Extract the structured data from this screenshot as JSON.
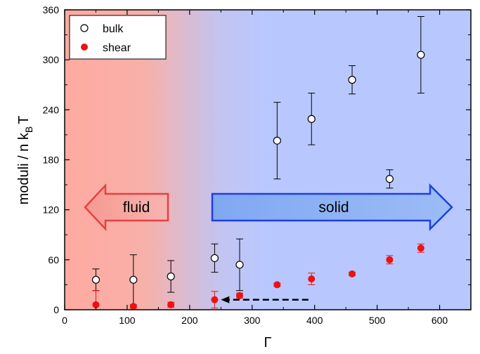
{
  "chart_data": {
    "type": "scatter",
    "xlabel": "Γ",
    "ylabel_main": "moduli / n k",
    "ylabel_sub": "B",
    "ylabel_tail": "T",
    "xlim": [
      0,
      650
    ],
    "ylim": [
      0,
      360
    ],
    "xticks": [
      0,
      100,
      200,
      300,
      400,
      500,
      600
    ],
    "yticks": [
      0,
      60,
      120,
      180,
      240,
      300,
      360
    ],
    "legend_position": "top-left",
    "regions": [
      {
        "label": "fluid",
        "color": "#ffaaa0"
      },
      {
        "label": "solid",
        "color": "#b8c8ff"
      }
    ],
    "colors": {
      "fluid_arrow_fill": "#f7a6a0",
      "fluid_arrow_stroke": "#e84040",
      "solid_arrow_fill": "#8eb2f4",
      "solid_arrow_stroke": "#1f3fe0",
      "shear": "#ee1111",
      "bulk_fill": "#ffffff",
      "bulk_stroke": "#000000"
    },
    "series": [
      {
        "name": "bulk",
        "marker": "open-circle",
        "x": [
          50,
          110,
          170,
          240,
          280,
          340,
          395,
          460,
          520,
          570
        ],
        "y": [
          36,
          36,
          40,
          62,
          54,
          203,
          229,
          276,
          157,
          306
        ],
        "err": [
          13,
          30,
          19,
          17,
          31,
          46,
          31,
          17,
          11,
          46
        ]
      },
      {
        "name": "shear",
        "marker": "filled-circle",
        "x": [
          50,
          110,
          170,
          240,
          280,
          340,
          395,
          460,
          520,
          570
        ],
        "y": [
          6,
          4,
          6,
          12,
          17,
          30,
          37,
          43,
          60,
          74
        ],
        "err": [
          17,
          2,
          3,
          10,
          3,
          2,
          7,
          2,
          5,
          5
        ]
      }
    ],
    "annotation_arrow": {
      "from": [
        390,
        12
      ],
      "to": [
        250,
        12
      ],
      "style": "dashed"
    }
  }
}
